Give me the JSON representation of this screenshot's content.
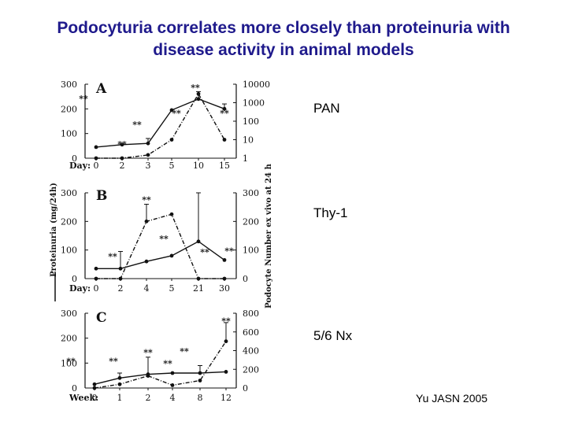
{
  "slide": {
    "title_line1": "Podocyturia correlates more closely than proteinuria with",
    "title_line2": "disease activity in animal models",
    "label_pan": "PAN",
    "label_thy": "Thy-1",
    "label_nx": "5/6 Nx",
    "credit": "Yu JASN 2005"
  },
  "colors": {
    "title": "#1f1a8c",
    "ink": "#111111"
  },
  "shared_axes": {
    "left_label": "Proteinuria (mg/24h)",
    "right_label": "Podocyte Number ex vivo at 24 h"
  },
  "chart_data": [
    {
      "panel": "A",
      "type": "line",
      "xlabel": "Day:",
      "categories": [
        "0",
        "2",
        "3",
        "5",
        "10",
        "15"
      ],
      "left_ticks": [
        "0",
        "100",
        "200",
        "300"
      ],
      "right_ticks": [
        "1",
        "10",
        "100",
        "1000",
        "10000"
      ],
      "right_scale": "log",
      "ylim_left": [
        0,
        300
      ],
      "ylim_right": [
        1,
        10000
      ],
      "series": [
        {
          "axis": "left",
          "style": "solid",
          "values": [
            45,
            55,
            60,
            195,
            240,
            200
          ],
          "err": [
            0,
            0,
            20,
            0,
            30,
            20
          ]
        },
        {
          "axis": "right",
          "style": "dashdot",
          "values": [
            1,
            1,
            1.5,
            10,
            3000,
            10
          ],
          "err": [
            0,
            0,
            0,
            0,
            0,
            0
          ]
        }
      ],
      "annotations": [
        "**",
        "**",
        "**",
        "**",
        "**",
        "**"
      ]
    },
    {
      "panel": "B",
      "type": "line",
      "xlabel": "Day:",
      "categories": [
        "0",
        "2",
        "4",
        "5",
        "21",
        "30"
      ],
      "left_ticks": [
        "0",
        "100",
        "200",
        "300"
      ],
      "right_ticks": [
        "0",
        "100",
        "200",
        "300"
      ],
      "ylim_left": [
        0,
        300
      ],
      "ylim_right": [
        0,
        300
      ],
      "series": [
        {
          "axis": "left",
          "style": "solid",
          "values": [
            35,
            35,
            60,
            80,
            130,
            65
          ],
          "err": [
            0,
            60,
            0,
            0,
            170,
            0
          ]
        },
        {
          "axis": "right",
          "style": "dashdot",
          "values": [
            0,
            0,
            200,
            225,
            0,
            0
          ],
          "err": [
            0,
            0,
            60,
            0,
            0,
            0
          ]
        }
      ],
      "annotations": [
        "**",
        "**",
        "**",
        "**",
        "**"
      ]
    },
    {
      "panel": "C",
      "type": "line",
      "xlabel": "Week:",
      "categories": [
        "0",
        "1",
        "2",
        "4",
        "8",
        "12"
      ],
      "left_ticks": [
        "0",
        "100",
        "200",
        "300"
      ],
      "right_ticks": [
        "0",
        "200",
        "400",
        "600",
        "800"
      ],
      "ylim_left": [
        0,
        300
      ],
      "ylim_right": [
        0,
        800
      ],
      "series": [
        {
          "axis": "left",
          "style": "solid",
          "values": [
            15,
            40,
            55,
            60,
            60,
            65
          ],
          "err": [
            0,
            20,
            0,
            0,
            30,
            0
          ]
        },
        {
          "axis": "right",
          "style": "dashdot",
          "values": [
            0,
            40,
            130,
            30,
            80,
            500
          ],
          "err": [
            0,
            0,
            200,
            0,
            0,
            200
          ]
        }
      ],
      "annotations": [
        "**",
        "**",
        "**",
        "**",
        "**",
        "**"
      ]
    }
  ]
}
